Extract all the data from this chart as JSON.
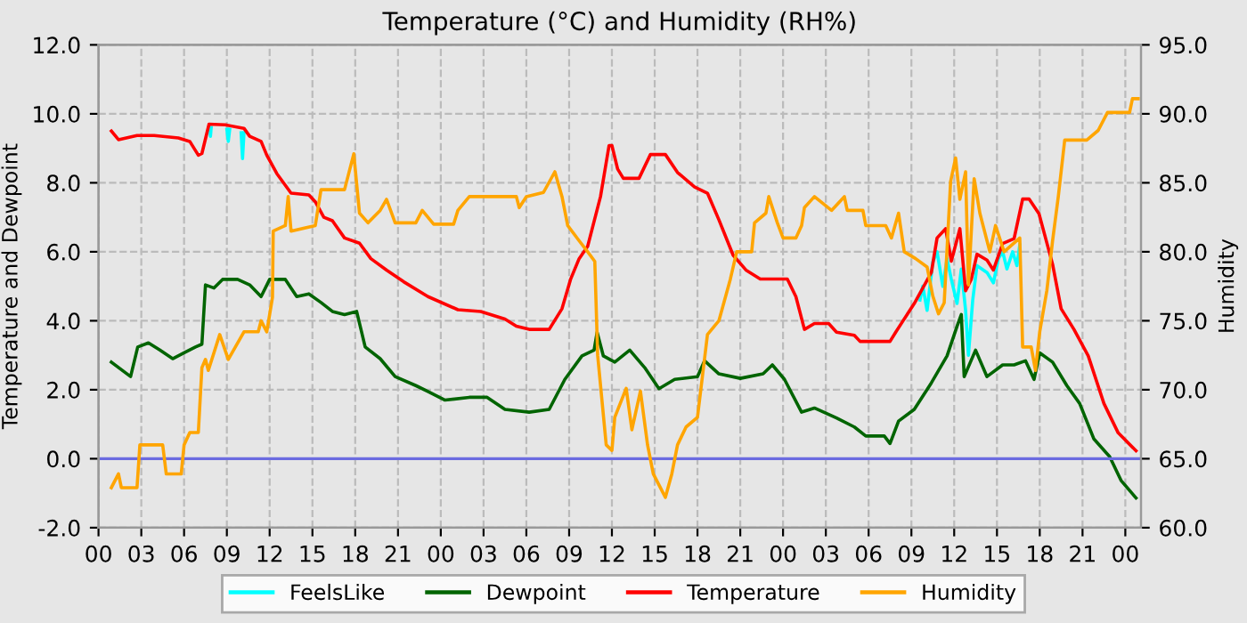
{
  "chart_data": {
    "type": "line",
    "title": "Temperature (°C) and Humidity (RH%)",
    "ylabel": "Temperature and Dewpoint",
    "y2label": "Humidity",
    "xlim": [
      0,
      73.1
    ],
    "xticks": [
      {
        "value": 0,
        "label": "00"
      },
      {
        "value": 3,
        "label": "03"
      },
      {
        "value": 6,
        "label": "06"
      },
      {
        "value": 9,
        "label": "09"
      },
      {
        "value": 12,
        "label": "12"
      },
      {
        "value": 15,
        "label": "15"
      },
      {
        "value": 18,
        "label": "18"
      },
      {
        "value": 21,
        "label": "21"
      },
      {
        "value": 24,
        "label": "00"
      },
      {
        "value": 27,
        "label": "03"
      },
      {
        "value": 30,
        "label": "06"
      },
      {
        "value": 33,
        "label": "09"
      },
      {
        "value": 36,
        "label": "12"
      },
      {
        "value": 39,
        "label": "15"
      },
      {
        "value": 42,
        "label": "18"
      },
      {
        "value": 45,
        "label": "21"
      },
      {
        "value": 48,
        "label": "00"
      },
      {
        "value": 51,
        "label": "03"
      },
      {
        "value": 54,
        "label": "06"
      },
      {
        "value": 57,
        "label": "09"
      },
      {
        "value": 60,
        "label": "12"
      },
      {
        "value": 63,
        "label": "15"
      },
      {
        "value": 66,
        "label": "18"
      },
      {
        "value": 69,
        "label": "21"
      },
      {
        "value": 72,
        "label": "00"
      }
    ],
    "ylim": [
      -2,
      12
    ],
    "yticks": [
      {
        "value": -2,
        "label": "-2.0"
      },
      {
        "value": 0,
        "label": "0.0"
      },
      {
        "value": 2,
        "label": "2.0"
      },
      {
        "value": 4,
        "label": "4.0"
      },
      {
        "value": 6,
        "label": "6.0"
      },
      {
        "value": 8,
        "label": "8.0"
      },
      {
        "value": 10,
        "label": "10.0"
      },
      {
        "value": 12,
        "label": "12.0"
      }
    ],
    "y2lim": [
      60,
      95
    ],
    "y2ticks": [
      {
        "value": 60,
        "label": "60.0"
      },
      {
        "value": 65,
        "label": "65.0"
      },
      {
        "value": 70,
        "label": "70.0"
      },
      {
        "value": 75,
        "label": "75.0"
      },
      {
        "value": 80,
        "label": "80.0"
      },
      {
        "value": 85,
        "label": "85.0"
      },
      {
        "value": 90,
        "label": "90.0"
      },
      {
        "value": 95,
        "label": "95.0"
      }
    ],
    "grid": true,
    "legend": "bottom",
    "ref_lines": [
      {
        "axis": "y",
        "value": 0,
        "color": "#6b6be0"
      }
    ],
    "series": [
      {
        "name": "FeelsLike",
        "color": "#00ffff",
        "x": [
          7.8,
          7.85,
          7.9,
          8.5,
          9.0,
          9.1,
          9.2,
          9.6,
          10.0,
          10.1,
          10.2,
          30.0,
          57.6,
          57.8,
          58.1,
          58.5,
          58.8,
          59.2,
          59.5,
          59.8,
          60.2,
          60.5,
          60.8,
          61.0,
          61.3,
          61.6,
          62.3,
          62.75,
          63.1,
          63.4,
          63.7,
          64.1,
          64.4,
          64.6
        ],
        "values": [
          9.6,
          9.35,
          9.6,
          null,
          9.55,
          9.2,
          9.55,
          null,
          9.45,
          8.7,
          9.45,
          null,
          4.6,
          5.0,
          4.3,
          5.7,
          6.0,
          5.0,
          5.8,
          5.2,
          4.5,
          5.5,
          4.3,
          3.0,
          4.6,
          5.6,
          5.4,
          5.1,
          5.8,
          6.0,
          5.5,
          6.0,
          5.6,
          6.2
        ]
      },
      {
        "name": "Dewpoint",
        "color": "#006400",
        "x": [
          0.9,
          2.25,
          2.75,
          3.5,
          4.3,
          5.2,
          6.0,
          6.8,
          7.25,
          7.5,
          8.1,
          8.7,
          9.75,
          10.6,
          11.4,
          12.0,
          13.1,
          13.9,
          14.75,
          15.6,
          16.4,
          17.25,
          18.1,
          18.7,
          19.75,
          20.8,
          22.25,
          23.1,
          24.3,
          26.0,
          27.25,
          28.5,
          30.2,
          31.6,
          32.7,
          33.9,
          34.75,
          34.96,
          35.4,
          36.2,
          37.25,
          38.3,
          39.3,
          40.4,
          42.0,
          42.5,
          43.5,
          45.0,
          46.6,
          47.25,
          48.1,
          49.3,
          50.2,
          51.75,
          53.0,
          53.8,
          55.1,
          55.5,
          56.1,
          57.2,
          58.4,
          59.5,
          60.2,
          60.5,
          60.7,
          61.5,
          62.3,
          63.4,
          64.2,
          65.0,
          65.6,
          66.0,
          66.9,
          67.9,
          68.8,
          69.8,
          70.9,
          71.7,
          72.75
        ],
        "values": [
          2.8,
          2.38,
          3.24,
          3.36,
          3.15,
          2.9,
          3.07,
          3.24,
          3.32,
          5.04,
          4.95,
          5.2,
          5.2,
          5.04,
          4.7,
          5.2,
          5.2,
          4.7,
          4.78,
          4.53,
          4.27,
          4.18,
          4.27,
          3.24,
          2.9,
          2.38,
          2.12,
          1.95,
          1.7,
          1.78,
          1.78,
          1.43,
          1.35,
          1.43,
          2.3,
          2.98,
          3.15,
          3.67,
          2.98,
          2.8,
          3.15,
          2.64,
          2.03,
          2.3,
          2.38,
          2.84,
          2.46,
          2.33,
          2.46,
          2.72,
          2.3,
          1.35,
          1.47,
          1.18,
          0.92,
          0.66,
          0.66,
          0.44,
          1.09,
          1.43,
          2.2,
          2.98,
          3.84,
          4.18,
          2.38,
          3.15,
          2.38,
          2.72,
          2.72,
          2.84,
          2.3,
          3.07,
          2.8,
          2.12,
          1.6,
          0.57,
          0.06,
          -0.63,
          -1.14
        ]
      },
      {
        "name": "Temperature",
        "color": "#ff0000",
        "x": [
          0.9,
          1.4,
          2.7,
          3.9,
          5.6,
          6.4,
          7.0,
          7.25,
          7.75,
          8.9,
          10.2,
          10.6,
          11.4,
          11.8,
          12.5,
          13.5,
          14.75,
          15.2,
          15.8,
          16.4,
          17.25,
          18.3,
          19.1,
          20.2,
          21.4,
          23.1,
          25.2,
          26.8,
          28.5,
          29.3,
          30.2,
          31.6,
          32.5,
          33.1,
          33.7,
          34.3,
          35.2,
          35.8,
          36.0,
          36.4,
          36.8,
          37.9,
          38.7,
          39.75,
          40.6,
          41.8,
          42.7,
          43.5,
          44.5,
          45.4,
          46.4,
          48.3,
          48.9,
          49.5,
          50.2,
          51.2,
          51.75,
          53.0,
          53.4,
          55.5,
          55.9,
          57.2,
          58.4,
          58.8,
          59.4,
          59.8,
          60.4,
          60.8,
          61.2,
          61.6,
          62.3,
          62.75,
          63.4,
          64.2,
          64.8,
          65.25,
          65.95,
          66.9,
          67.5,
          68.4,
          69.4,
          70.5,
          71.5,
          72.75
        ],
        "values": [
          9.5,
          9.25,
          9.37,
          9.37,
          9.3,
          9.2,
          8.8,
          8.85,
          9.7,
          9.68,
          9.58,
          9.35,
          9.2,
          8.8,
          8.27,
          7.7,
          7.65,
          7.45,
          7.0,
          6.9,
          6.4,
          6.25,
          5.8,
          5.47,
          5.13,
          4.7,
          4.32,
          4.27,
          4.05,
          3.84,
          3.75,
          3.75,
          4.35,
          5.2,
          5.8,
          6.16,
          7.6,
          9.08,
          9.08,
          8.4,
          8.13,
          8.13,
          8.82,
          8.82,
          8.3,
          7.88,
          7.7,
          6.93,
          5.9,
          5.47,
          5.21,
          5.21,
          4.7,
          3.75,
          3.92,
          3.92,
          3.67,
          3.58,
          3.4,
          3.4,
          3.67,
          4.5,
          5.4,
          6.4,
          6.67,
          5.73,
          6.67,
          4.87,
          5.2,
          5.93,
          5.76,
          5.47,
          6.24,
          6.38,
          7.53,
          7.53,
          7.1,
          5.64,
          4.35,
          3.75,
          2.98,
          1.6,
          0.75,
          0.23
        ]
      },
      {
        "name": "Humidity",
        "color": "#ffa500",
        "axis": "y2",
        "x": [
          0.9,
          1.4,
          1.6,
          2.7,
          2.9,
          4.5,
          4.75,
          5.8,
          6.0,
          6.4,
          7.0,
          7.25,
          7.5,
          7.7,
          8.5,
          9.1,
          10.2,
          11.2,
          11.4,
          11.8,
          12.2,
          12.25,
          13.1,
          13.3,
          13.5,
          15.2,
          15.6,
          17.25,
          17.9,
          18.3,
          18.9,
          19.75,
          20.2,
          20.8,
          22.25,
          22.7,
          23.5,
          24.9,
          25.2,
          26.0,
          29.3,
          29.5,
          30.0,
          31.2,
          32.0,
          32.5,
          32.9,
          33.7,
          34.3,
          34.8,
          35.0,
          35.6,
          36.0,
          36.2,
          37.0,
          37.4,
          38.0,
          38.5,
          38.9,
          39.75,
          40.2,
          40.6,
          41.2,
          42.0,
          42.7,
          43.5,
          44.3,
          44.75,
          45.8,
          46.0,
          46.8,
          47.0,
          47.6,
          48.0,
          48.9,
          49.3,
          49.5,
          50.2,
          51.4,
          52.3,
          52.5,
          53.6,
          53.8,
          55.2,
          55.6,
          56.1,
          56.5,
          57.3,
          58.1,
          58.5,
          58.9,
          59.3,
          59.75,
          60.1,
          60.4,
          60.8,
          61.0,
          61.4,
          61.8,
          62.5,
          62.9,
          63.5,
          64.6,
          64.8,
          65.4,
          65.7,
          66.0,
          66.5,
          66.9,
          67.3,
          67.75,
          69.3,
          70.1,
          70.75,
          72.3,
          72.5,
          72.9
        ],
        "values": [
          62.9,
          63.9,
          62.9,
          62.9,
          66,
          66,
          63.9,
          63.9,
          66,
          66.9,
          66.9,
          71.6,
          72.2,
          71.4,
          74,
          72.2,
          74.2,
          74.2,
          75,
          74.2,
          76.7,
          81.5,
          81.9,
          84,
          81.5,
          81.9,
          84.5,
          84.5,
          87.1,
          82.8,
          82.1,
          83,
          83.8,
          82.1,
          82.1,
          83,
          82,
          82,
          83,
          84,
          84,
          83.2,
          84,
          84.3,
          85.8,
          84,
          81.9,
          80.8,
          80,
          79.3,
          72.5,
          66,
          65.6,
          68,
          70.1,
          67.1,
          69.9,
          66,
          63.9,
          62.2,
          63.9,
          66,
          67.3,
          68,
          74,
          75,
          78,
          80,
          80,
          82.1,
          82.8,
          84,
          82.1,
          81,
          81,
          81.9,
          83.2,
          84,
          83,
          84,
          83,
          83,
          81.9,
          81.9,
          81,
          82.8,
          80,
          79.5,
          78.9,
          76.8,
          75.5,
          76.3,
          85.1,
          86.8,
          83.8,
          85.8,
          77.6,
          85.3,
          82.8,
          80,
          81.9,
          80,
          81,
          73.1,
          73.1,
          71.4,
          74.2,
          77.2,
          80.8,
          84,
          88.1,
          88.1,
          88.8,
          90.1,
          90.1,
          91.1,
          91.1
        ]
      }
    ]
  }
}
